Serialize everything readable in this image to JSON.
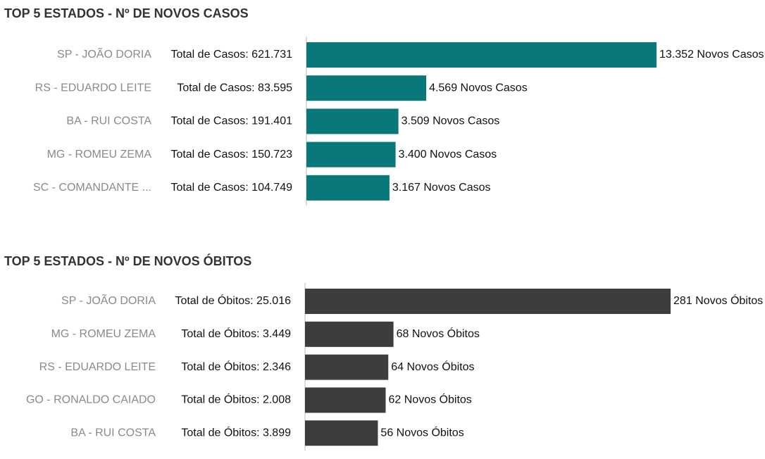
{
  "chart_data": [
    {
      "type": "bar",
      "orientation": "horizontal",
      "title": "TOP 5 ESTADOS - Nº DE NOVOS CASOS",
      "categories": [
        "SP - JOÃO DORIA",
        "RS - EDUARDO LEITE",
        "BA - RUI COSTA",
        "MG - ROMEU ZEMA",
        "SC - COMANDANTE ..."
      ],
      "totals": [
        "Total de Casos: 621.731",
        "Total de Casos: 83.595",
        "Total de Casos: 191.401",
        "Total de Casos: 150.723",
        "Total de Casos: 104.749"
      ],
      "values": [
        13352,
        4569,
        3509,
        3400,
        3167
      ],
      "value_labels": [
        "13.352 Novos Casos",
        "4.569 Novos Casos",
        "3.509 Novos Casos",
        "3.400 Novos Casos",
        "3.167 Novos Casos"
      ],
      "color": "#08787a"
    },
    {
      "type": "bar",
      "orientation": "horizontal",
      "title": "TOP 5 ESTADOS -  Nº DE NOVOS ÓBITOS",
      "categories": [
        "SP - JOÃO DORIA",
        "MG - ROMEU ZEMA",
        "RS - EDUARDO LEITE",
        "GO - RONALDO CAIADO",
        "BA - RUI COSTA"
      ],
      "totals": [
        "Total de Óbitos: 25.016",
        "Total de Óbitos: 3.449",
        "Total de Óbitos: 2.346",
        "Total de Óbitos: 2.008",
        "Total de Óbitos: 3.899"
      ],
      "values": [
        281,
        68,
        64,
        62,
        56
      ],
      "value_labels": [
        "281 Novos Óbitos",
        "68 Novos Óbitos",
        "64 Novos Óbitos",
        "62 Novos Óbitos",
        "56 Novos Óbitos"
      ],
      "color": "#3d3d3d"
    }
  ]
}
